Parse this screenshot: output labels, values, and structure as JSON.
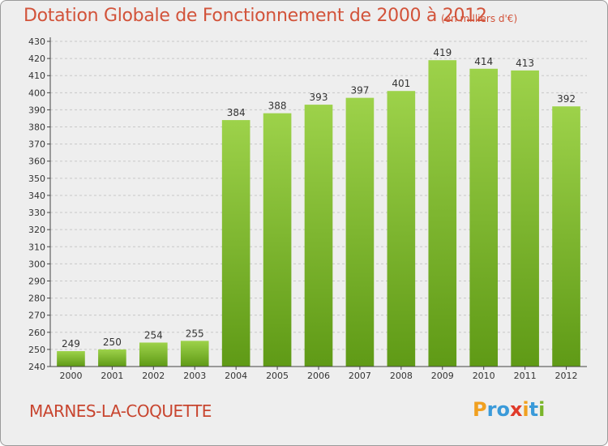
{
  "chart_data": {
    "type": "bar",
    "title": "Dotation Globale de Fonctionnement de 2000 à 2012",
    "subtitle": "(en milliers d'€)",
    "categories": [
      "2000",
      "2001",
      "2002",
      "2003",
      "2004",
      "2005",
      "2006",
      "2007",
      "2008",
      "2009",
      "2010",
      "2011",
      "2012"
    ],
    "values": [
      249,
      250,
      254,
      255,
      384,
      388,
      393,
      397,
      401,
      419,
      414,
      413,
      392
    ],
    "ylim": [
      240,
      430
    ],
    "ytick_step": 10,
    "grid": true,
    "bar_color": "#7fbf2a",
    "legend": "none"
  },
  "commune_name": "MARNES-LA-COQUETTE",
  "logo": {
    "letters": [
      "P",
      "r",
      "o",
      "x",
      "i",
      "t",
      "i"
    ],
    "colors": [
      "#f0a020",
      "#3a9ad9",
      "#3a9ad9",
      "#e03a2a",
      "#f0a020",
      "#3a9ad9",
      "#7ab52a"
    ]
  },
  "colors": {
    "title": "#d2533a",
    "commune": "#c8452f",
    "background": "#eeeeee",
    "axis": "#444444"
  }
}
